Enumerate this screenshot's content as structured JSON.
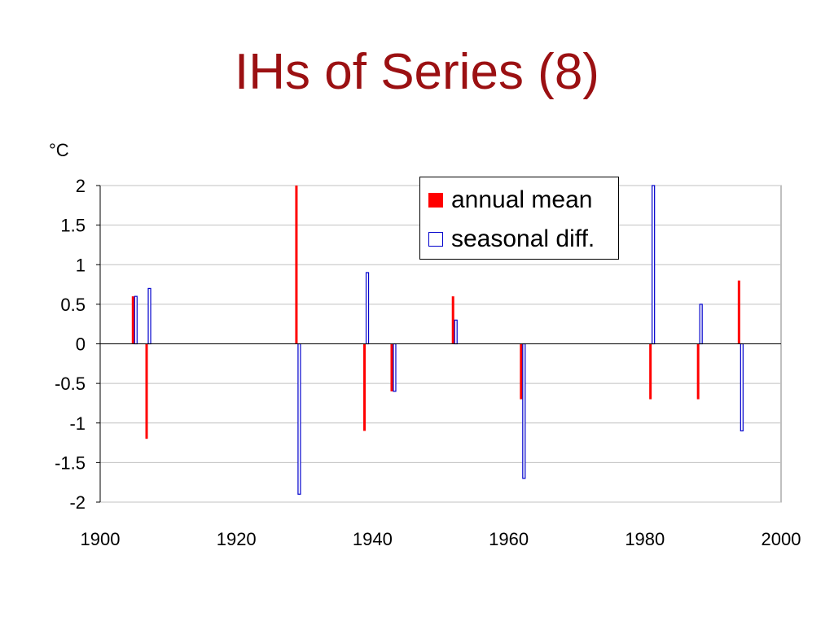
{
  "title": "IHs of Series (8)",
  "unit": "°C",
  "legend": {
    "annual": "annual mean",
    "seasonal": "seasonal diff."
  },
  "colors": {
    "title": "#9b1012",
    "annual": "#ff0000",
    "seasonal": "#0000cc",
    "grid": "#c0c0c0",
    "axis": "#000000"
  },
  "chart_data": {
    "type": "bar",
    "xlim": [
      1900,
      2000
    ],
    "ylim": [
      -2,
      2
    ],
    "xticks": [
      "1900",
      "1920",
      "1940",
      "1960",
      "1980",
      "2000"
    ],
    "yticks": [
      "2",
      "1.5",
      "1",
      "0.5",
      "0",
      "-0.5",
      "-1",
      "-1.5",
      "-2"
    ],
    "grid": true,
    "legend_position": "top-right",
    "series": [
      {
        "name": "annual mean",
        "style": "filled",
        "points": [
          {
            "x": 1905,
            "y": 0.6
          },
          {
            "x": 1907,
            "y": -1.2
          },
          {
            "x": 1929,
            "y": 2.0
          },
          {
            "x": 1939,
            "y": -1.1
          },
          {
            "x": 1943,
            "y": -0.6
          },
          {
            "x": 1952,
            "y": 0.6
          },
          {
            "x": 1962,
            "y": -0.7
          },
          {
            "x": 1981,
            "y": -0.7
          },
          {
            "x": 1988,
            "y": -0.7
          },
          {
            "x": 1994,
            "y": 0.8
          }
        ]
      },
      {
        "name": "seasonal diff.",
        "style": "outline",
        "points": [
          {
            "x": 1905,
            "y": 0.6
          },
          {
            "x": 1907,
            "y": 0.7
          },
          {
            "x": 1929,
            "y": -1.9
          },
          {
            "x": 1939,
            "y": 0.9
          },
          {
            "x": 1943,
            "y": -0.6
          },
          {
            "x": 1952,
            "y": 0.3
          },
          {
            "x": 1962,
            "y": -1.7
          },
          {
            "x": 1981,
            "y": 2.0
          },
          {
            "x": 1988,
            "y": 0.5
          },
          {
            "x": 1994,
            "y": -1.1
          }
        ]
      }
    ]
  }
}
